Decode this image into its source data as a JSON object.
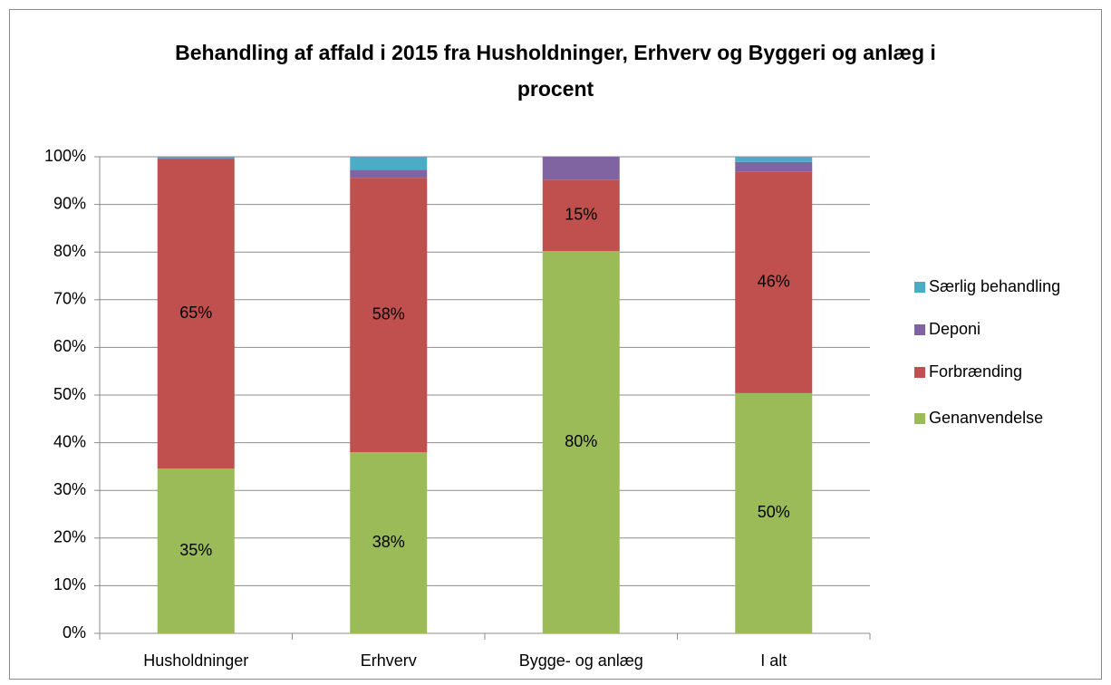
{
  "chart_data": {
    "type": "stacked_bar",
    "title": "Behandling af affald i 2015 fra Husholdninger, Erhverv og Byggeri og anlæg i procent",
    "categories": [
      "Husholdninger",
      "Erhverv",
      "Bygge- og anlæg",
      "I alt"
    ],
    "series": [
      {
        "name": "Genanvendelse",
        "color": "#9bbb59",
        "values": [
          34.6,
          38.0,
          80.2,
          50.4
        ],
        "value_labels": [
          "35%",
          "38%",
          "80%",
          "50%"
        ]
      },
      {
        "name": "Forbrænding",
        "color": "#c0504d",
        "values": [
          65.0,
          57.6,
          15.0,
          46.4
        ],
        "value_labels": [
          "65%",
          "58%",
          "15%",
          "46%"
        ]
      },
      {
        "name": "Deponi",
        "color": "#8064a2",
        "values": [
          0.1,
          1.7,
          4.8,
          2.1
        ]
      },
      {
        "name": "Særlig behandling",
        "color": "#4bacc6",
        "values": [
          0.3,
          2.7,
          0,
          1.1
        ]
      }
    ],
    "ylim": [
      0,
      100
    ],
    "yticks": [
      {
        "value": 0,
        "label": "0%"
      },
      {
        "value": 10,
        "label": "10%"
      },
      {
        "value": 20,
        "label": "20%"
      },
      {
        "value": 30,
        "label": "30%"
      },
      {
        "value": 40,
        "label": "40%"
      },
      {
        "value": 50,
        "label": "50%"
      },
      {
        "value": 60,
        "label": "60%"
      },
      {
        "value": 70,
        "label": "70%"
      },
      {
        "value": 80,
        "label": "80%"
      },
      {
        "value": 90,
        "label": "90%"
      },
      {
        "value": 100,
        "label": "100%"
      }
    ],
    "grid": true,
    "legend": "right"
  }
}
